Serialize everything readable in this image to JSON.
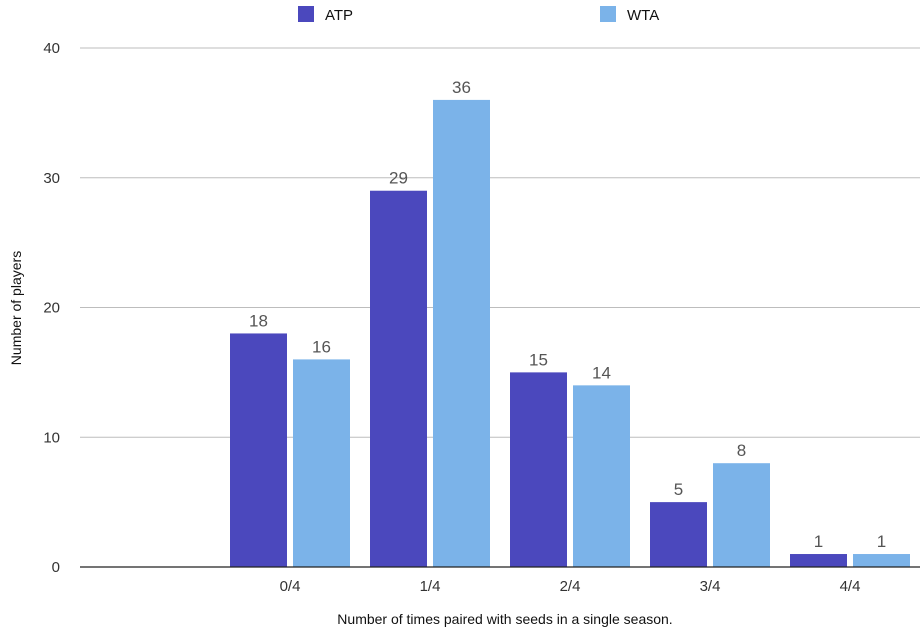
{
  "chart_data": {
    "type": "bar",
    "categories": [
      "",
      "0/4",
      "1/4",
      "2/4",
      "3/4",
      "4/4"
    ],
    "series": [
      {
        "name": "ATP",
        "color": "#4b48bd",
        "values": [
          null,
          18,
          29,
          15,
          5,
          1
        ]
      },
      {
        "name": "WTA",
        "color": "#7bb3e9",
        "values": [
          null,
          16,
          36,
          14,
          8,
          1
        ]
      }
    ],
    "xlabel": "Number of times paired with seeds in a single season.",
    "ylabel": "Number of players",
    "ylim": [
      0,
      40
    ],
    "yticks": [
      0,
      10,
      20,
      30,
      40
    ],
    "grid": true,
    "legend_position": "top"
  }
}
